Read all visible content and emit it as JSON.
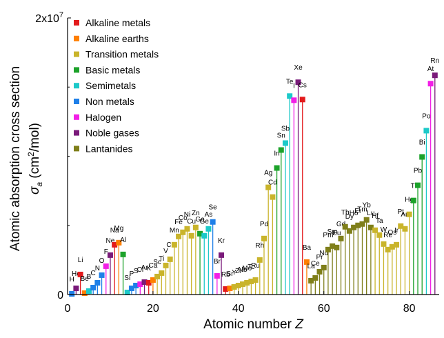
{
  "chart_data": {
    "type": "stem",
    "xlabel": "Atomic number",
    "xlabel_var": "Z",
    "ylabel": "Atomic absorption cross section",
    "ylabel_symbol": "σ",
    "ylabel_symbol_sub": "a",
    "ylabel_unit_open": "(cm",
    "ylabel_unit_sup": "2",
    "ylabel_unit_close": "/mol)",
    "xlim": [
      0,
      87
    ],
    "ylim": [
      0,
      20000000
    ],
    "x_ticks": [
      0,
      20,
      40,
      60,
      80
    ],
    "y_ticks": [
      {
        "value": 0,
        "label": "0"
      },
      {
        "value": 20000000,
        "label": "2x10",
        "exp": "7"
      }
    ],
    "legend_position": "upper-left",
    "categories": [
      {
        "key": "alkali",
        "label": "Alkaline metals",
        "color": "#e31a1c"
      },
      {
        "key": "alkearth",
        "label": "Alkaline earths",
        "color": "#ff7f00"
      },
      {
        "key": "transition",
        "label": "Transition metals",
        "color": "#c9b42b"
      },
      {
        "key": "basic",
        "label": "Basic metals",
        "color": "#1ca22a"
      },
      {
        "key": "semi",
        "label": "Semimetals",
        "color": "#1cc9c9"
      },
      {
        "key": "nonmetal",
        "label": "Non metals",
        "color": "#1e7fe8"
      },
      {
        "key": "halogen",
        "label": "Halogen",
        "color": "#f21ee6"
      },
      {
        "key": "noble",
        "label": "Noble gases",
        "color": "#7a1a7a"
      },
      {
        "key": "lanthanide",
        "label": "Lantanides",
        "color": "#7f7f1a"
      }
    ],
    "elements": [
      {
        "z": 1,
        "sym": "H",
        "cat": "nonmetal",
        "value": 50000
      },
      {
        "z": 2,
        "sym": "He",
        "cat": "noble",
        "value": 450000
      },
      {
        "z": 3,
        "sym": "Li",
        "cat": "alkali",
        "value": 1450000
      },
      {
        "z": 4,
        "sym": "Be",
        "cat": "alkearth",
        "value": 100000
      },
      {
        "z": 5,
        "sym": "B",
        "cat": "semi",
        "value": 250000
      },
      {
        "z": 6,
        "sym": "C",
        "cat": "nonmetal",
        "value": 500000
      },
      {
        "z": 7,
        "sym": "N",
        "cat": "nonmetal",
        "value": 850000
      },
      {
        "z": 8,
        "sym": "O",
        "cat": "nonmetal",
        "value": 1400000
      },
      {
        "z": 9,
        "sym": "F",
        "cat": "halogen",
        "value": 2050000
      },
      {
        "z": 10,
        "sym": "Ne",
        "cat": "noble",
        "value": 2850000
      },
      {
        "z": 11,
        "sym": "Na",
        "cat": "alkali",
        "value": 3600000
      },
      {
        "z": 12,
        "sym": "Mg",
        "cat": "alkearth",
        "value": 3750000
      },
      {
        "z": 13,
        "sym": "Al",
        "cat": "basic",
        "value": 2900000
      },
      {
        "z": 14,
        "sym": "Si",
        "cat": "semi",
        "value": 150000
      },
      {
        "z": 15,
        "sym": "P",
        "cat": "nonmetal",
        "value": 450000
      },
      {
        "z": 16,
        "sym": "S",
        "cat": "nonmetal",
        "value": 650000
      },
      {
        "z": 17,
        "sym": "Cl",
        "cat": "halogen",
        "value": 750000
      },
      {
        "z": 18,
        "sym": "Ar",
        "cat": "noble",
        "value": 900000
      },
      {
        "z": 19,
        "sym": "K",
        "cat": "alkali",
        "value": 850000
      },
      {
        "z": 20,
        "sym": "Ca",
        "cat": "alkearth",
        "value": 1050000
      },
      {
        "z": 21,
        "sym": "Sc",
        "cat": "transition",
        "value": 1300000
      },
      {
        "z": 22,
        "sym": "Ti",
        "cat": "transition",
        "value": 1550000
      },
      {
        "z": 23,
        "sym": "V",
        "cat": "transition",
        "value": 2100000
      },
      {
        "z": 24,
        "sym": "Cr",
        "cat": "transition",
        "value": 2550000
      },
      {
        "z": 25,
        "sym": "Mn",
        "cat": "transition",
        "value": 3600000
      },
      {
        "z": 26,
        "sym": "Fe",
        "cat": "transition",
        "value": 4200000
      },
      {
        "z": 27,
        "sym": "Co",
        "cat": "transition",
        "value": 4500000
      },
      {
        "z": 28,
        "sym": "Ni",
        "cat": "transition",
        "value": 4750000
      },
      {
        "z": 29,
        "sym": "Cu",
        "cat": "transition",
        "value": 4250000
      },
      {
        "z": 30,
        "sym": "Zn",
        "cat": "transition",
        "value": 4850000
      },
      {
        "z": 31,
        "sym": "Ga",
        "cat": "basic",
        "value": 4400000
      },
      {
        "z": 32,
        "sym": "Ge",
        "cat": "semi",
        "value": 4250000
      },
      {
        "z": 33,
        "sym": "As",
        "cat": "semi",
        "value": 4750000
      },
      {
        "z": 34,
        "sym": "Se",
        "cat": "nonmetal",
        "value": 5250000
      },
      {
        "z": 35,
        "sym": "Br",
        "cat": "halogen",
        "value": 1350000
      },
      {
        "z": 36,
        "sym": "Kr",
        "cat": "noble",
        "value": 2850000
      },
      {
        "z": 37,
        "sym": "Rb",
        "cat": "alkali",
        "value": 400000
      },
      {
        "z": 38,
        "sym": "Sr",
        "cat": "alkearth",
        "value": 450000
      },
      {
        "z": 39,
        "sym": "Y",
        "cat": "transition",
        "value": 550000
      },
      {
        "z": 40,
        "sym": "Zr",
        "cat": "transition",
        "value": 650000
      },
      {
        "z": 41,
        "sym": "Nb",
        "cat": "transition",
        "value": 750000
      },
      {
        "z": 42,
        "sym": "Mo",
        "cat": "transition",
        "value": 850000
      },
      {
        "z": 43,
        "sym": "Tc",
        "cat": "transition",
        "value": 950000
      },
      {
        "z": 44,
        "sym": "Ru",
        "cat": "transition",
        "value": 1050000
      },
      {
        "z": 45,
        "sym": "Rh",
        "cat": "transition",
        "value": 2500000
      },
      {
        "z": 46,
        "sym": "Pd",
        "cat": "transition",
        "value": 4050000
      },
      {
        "z": 47,
        "sym": "Ag",
        "cat": "transition",
        "value": 7750000
      },
      {
        "z": 48,
        "sym": "Cd",
        "cat": "transition",
        "value": 7050000
      },
      {
        "z": 49,
        "sym": "In",
        "cat": "basic",
        "value": 9150000
      },
      {
        "z": 50,
        "sym": "Sn",
        "cat": "basic",
        "value": 10450000
      },
      {
        "z": 51,
        "sym": "Sb",
        "cat": "semi",
        "value": 10950000
      },
      {
        "z": 52,
        "sym": "Te",
        "cat": "semi",
        "value": 14350000
      },
      {
        "z": 53,
        "sym": "I",
        "cat": "halogen",
        "value": 14050000
      },
      {
        "z": 54,
        "sym": "Xe",
        "cat": "noble",
        "value": 15350000
      },
      {
        "z": 55,
        "sym": "Cs",
        "cat": "alkali",
        "value": 14100000
      },
      {
        "z": 56,
        "sym": "Ba",
        "cat": "alkearth",
        "value": 2350000
      },
      {
        "z": 57,
        "sym": "La",
        "cat": "lanthanide",
        "value": 1000000
      },
      {
        "z": 58,
        "sym": "Ce",
        "cat": "lanthanide",
        "value": 1200000
      },
      {
        "z": 59,
        "sym": "Pr",
        "cat": "lanthanide",
        "value": 1650000
      },
      {
        "z": 60,
        "sym": "Nd",
        "cat": "lanthanide",
        "value": 1950000
      },
      {
        "z": 61,
        "sym": "Pm",
        "cat": "lanthanide",
        "value": 3250000
      },
      {
        "z": 62,
        "sym": "Sm",
        "cat": "lanthanide",
        "value": 3500000
      },
      {
        "z": 63,
        "sym": "Eu",
        "cat": "lanthanide",
        "value": 3400000
      },
      {
        "z": 64,
        "sym": "Gd",
        "cat": "lanthanide",
        "value": 4050000
      },
      {
        "z": 65,
        "sym": "Tb",
        "cat": "lanthanide",
        "value": 4900000
      },
      {
        "z": 66,
        "sym": "Dy",
        "cat": "lanthanide",
        "value": 4600000
      },
      {
        "z": 67,
        "sym": "Ho",
        "cat": "lanthanide",
        "value": 4850000
      },
      {
        "z": 68,
        "sym": "Er",
        "cat": "lanthanide",
        "value": 5000000
      },
      {
        "z": 69,
        "sym": "Tm",
        "cat": "lanthanide",
        "value": 5100000
      },
      {
        "z": 70,
        "sym": "Yb",
        "cat": "lanthanide",
        "value": 5400000
      },
      {
        "z": 71,
        "sym": "Lu",
        "cat": "lanthanide",
        "value": 4850000
      },
      {
        "z": 72,
        "sym": "Hf",
        "cat": "transition",
        "value": 4650000
      },
      {
        "z": 73,
        "sym": "Ta",
        "cat": "transition",
        "value": 4300000
      },
      {
        "z": 74,
        "sym": "W",
        "cat": "transition",
        "value": 3650000
      },
      {
        "z": 75,
        "sym": "Re",
        "cat": "transition",
        "value": 3250000
      },
      {
        "z": 76,
        "sym": "Os",
        "cat": "transition",
        "value": 3450000
      },
      {
        "z": 77,
        "sym": "Ir",
        "cat": "transition",
        "value": 3600000
      },
      {
        "z": 78,
        "sym": "Pt",
        "cat": "transition",
        "value": 4950000
      },
      {
        "z": 79,
        "sym": "Au",
        "cat": "transition",
        "value": 4750000
      },
      {
        "z": 80,
        "sym": "Hg",
        "cat": "transition",
        "value": 5800000
      },
      {
        "z": 81,
        "sym": "Tl",
        "cat": "basic",
        "value": 6800000
      },
      {
        "z": 82,
        "sym": "Pb",
        "cat": "basic",
        "value": 7900000
      },
      {
        "z": 83,
        "sym": "Bi",
        "cat": "basic",
        "value": 9950000
      },
      {
        "z": 84,
        "sym": "Po",
        "cat": "semi",
        "value": 11850000
      },
      {
        "z": 85,
        "sym": "At",
        "cat": "halogen",
        "value": 15250000
      },
      {
        "z": 86,
        "sym": "Rn",
        "cat": "noble",
        "value": 15850000
      }
    ]
  }
}
